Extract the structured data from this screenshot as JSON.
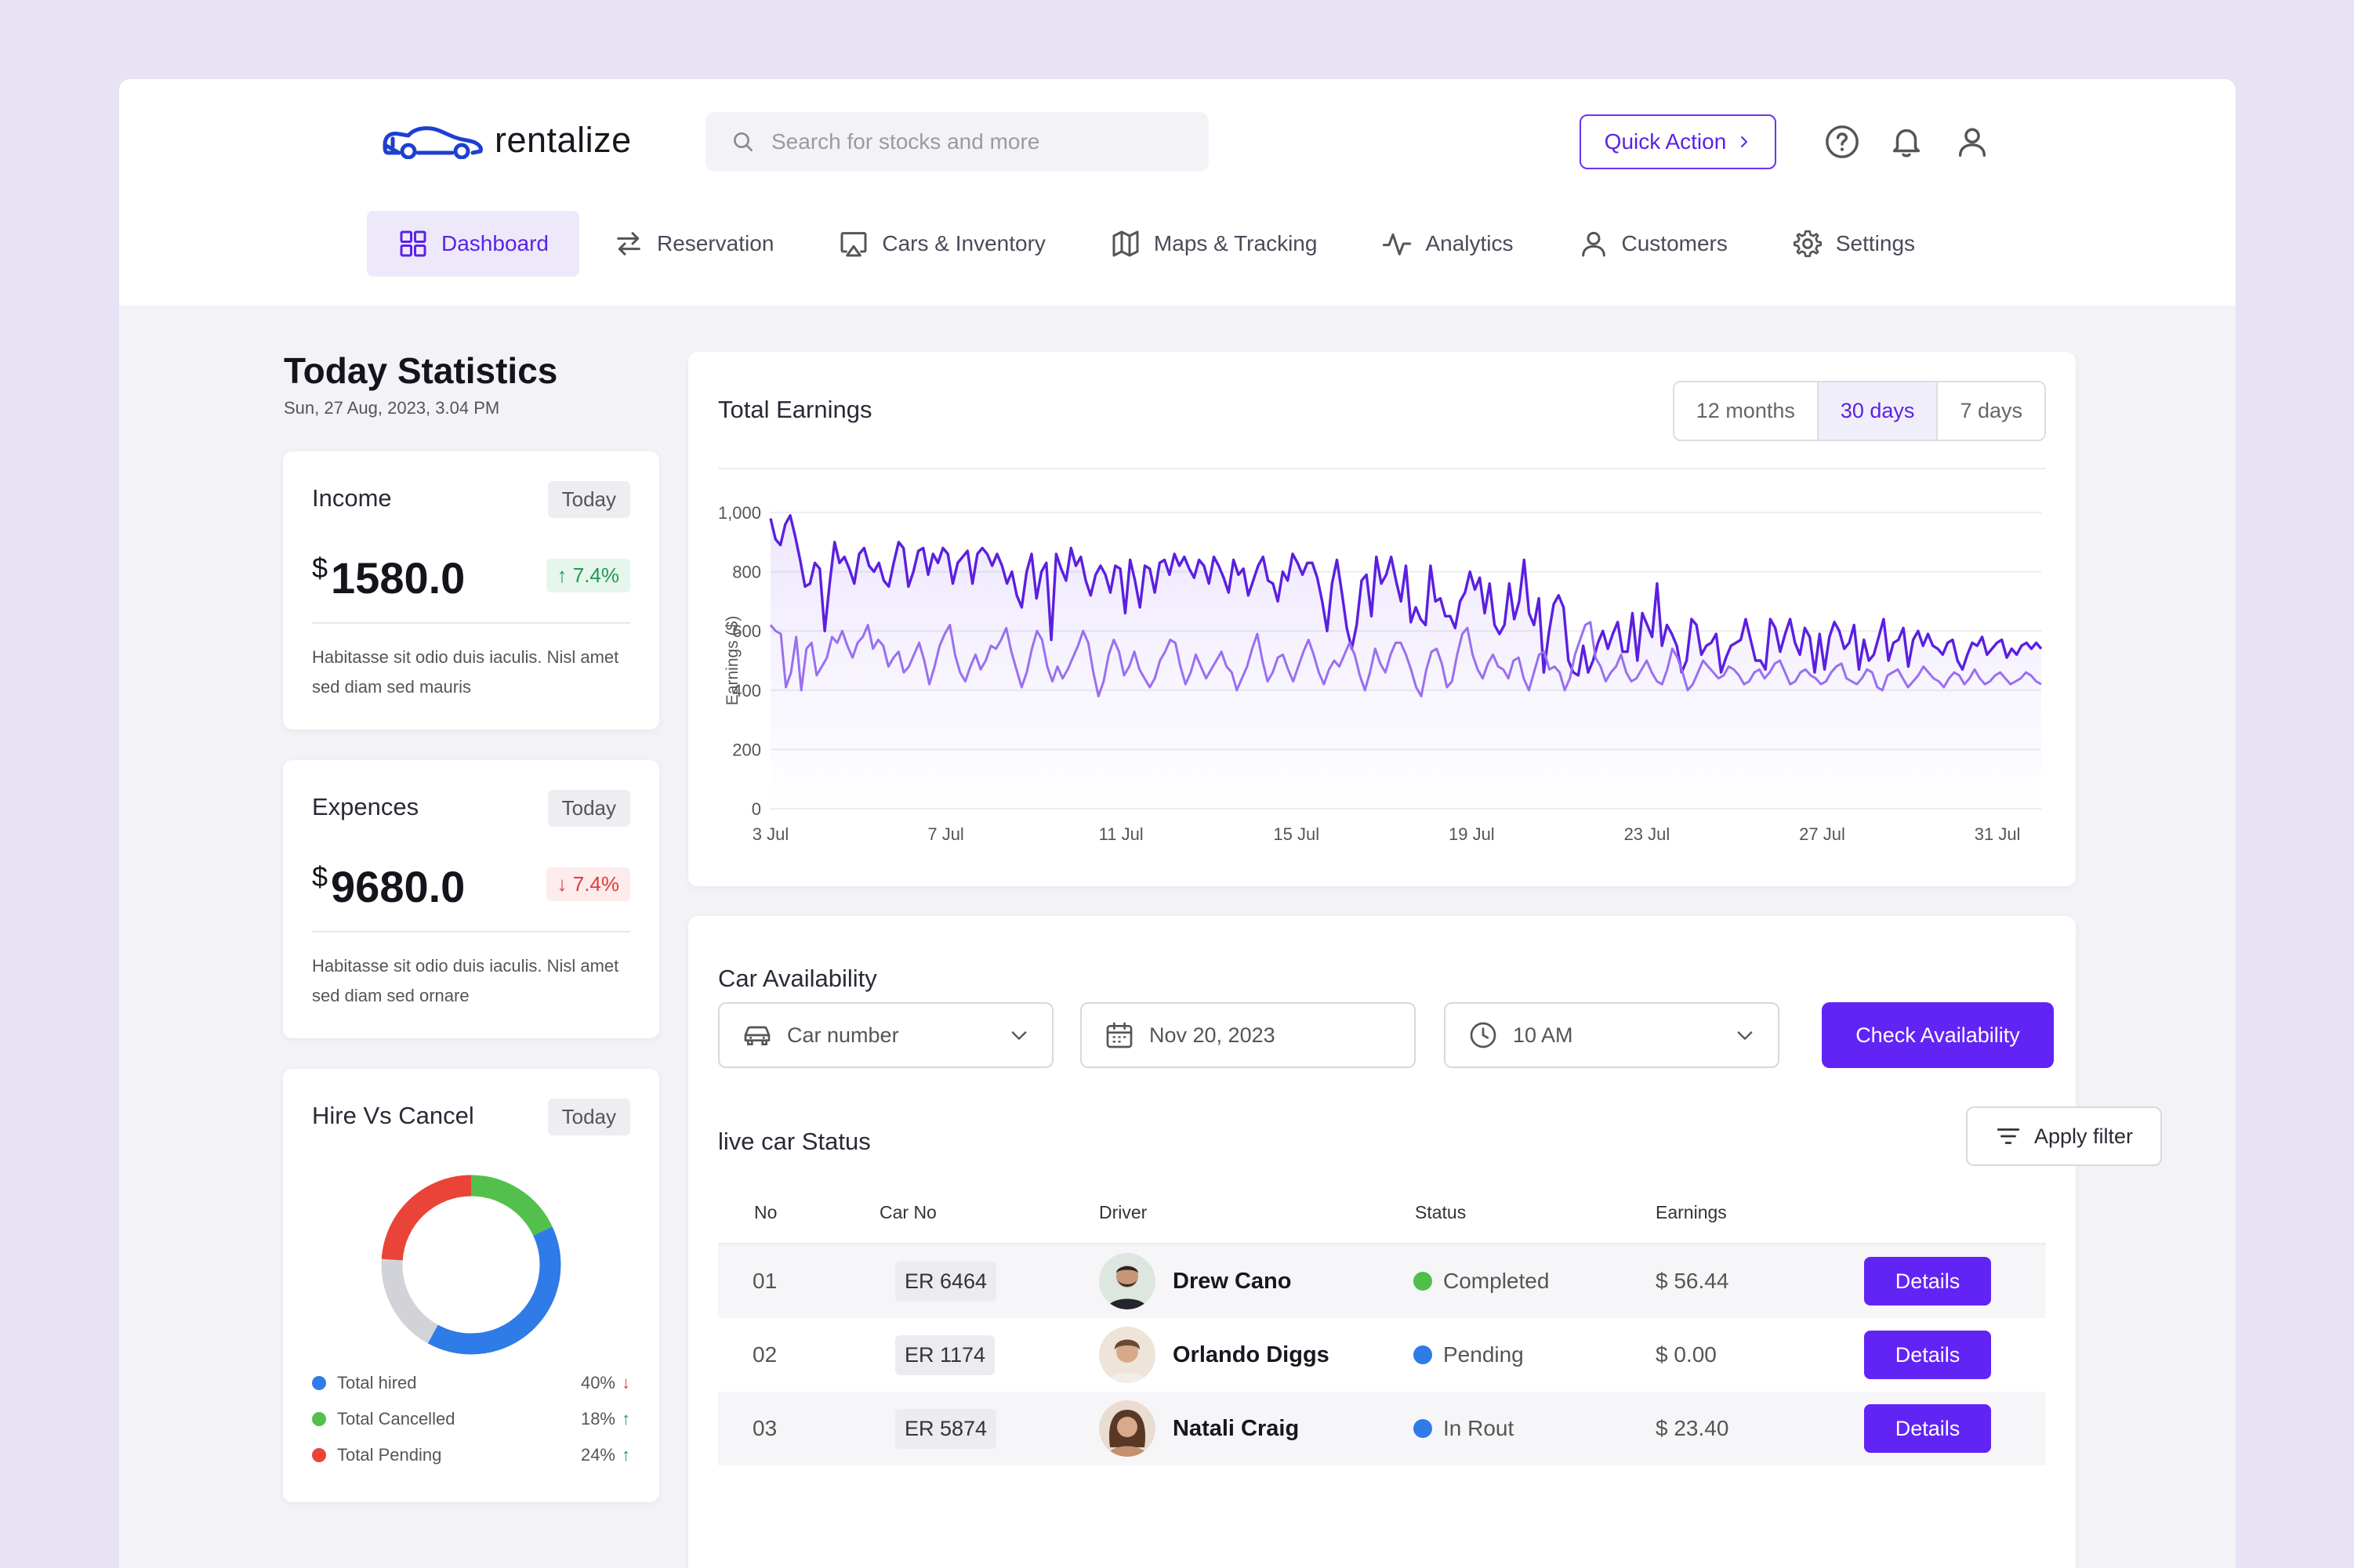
{
  "brand": {
    "name": "rentalize",
    "accent": "#6224f4"
  },
  "search": {
    "placeholder": "Search for stocks and more"
  },
  "header": {
    "quick_action": "Quick Action"
  },
  "nav": [
    {
      "label": "Dashboard",
      "icon": "grid-icon"
    },
    {
      "label": "Reservation",
      "icon": "swap-arrows-icon"
    },
    {
      "label": "Cars & Inventory",
      "icon": "cast-icon"
    },
    {
      "label": "Maps & Tracking",
      "icon": "map-icon"
    },
    {
      "label": "Analytics",
      "icon": "activity-icon"
    },
    {
      "label": "Customers",
      "icon": "user-icon"
    },
    {
      "label": "Settings",
      "icon": "gear-icon"
    }
  ],
  "today": {
    "title": "Today Statistics",
    "date": "Sun, 27 Aug, 2023, 3.04 PM"
  },
  "income": {
    "title": "Income",
    "chip": "Today",
    "currency": "$",
    "amount": "1580.0",
    "change": "7.4%",
    "desc": "Habitasse sit odio duis iaculis. Nisl amet sed diam sed mauris"
  },
  "expences": {
    "title": "Expences",
    "chip": "Today",
    "currency": "$",
    "amount": "9680.0",
    "change": "7.4%",
    "desc": "Habitasse sit odio duis iaculis. Nisl amet sed diam sed ornare"
  },
  "hire": {
    "title": "Hire Vs Cancel",
    "chip": "Today",
    "segments": [
      {
        "name": "Total hired",
        "pct": "40%",
        "color": "#2f7be8",
        "trend": "down"
      },
      {
        "name": "Total Cancelled",
        "pct": "18%",
        "color": "#52c04a",
        "trend": "up"
      },
      {
        "name": "Total Pending",
        "pct": "24%",
        "color": "#ea4337",
        "trend": "up"
      }
    ],
    "gray_color": "#d2d3d8"
  },
  "earnings": {
    "title": "Total Earnings",
    "ranges": [
      "12 months",
      "30 days",
      "7 days"
    ],
    "active_range": "30 days"
  },
  "chart_data": {
    "type": "line",
    "ylabel": "Earnings ($)",
    "ylim": [
      0,
      1000
    ],
    "yticks": [
      "0",
      "200",
      "400",
      "600",
      "800",
      "1,000"
    ],
    "xticks": [
      "3 Jul",
      "7 Jul",
      "11 Jul",
      "15 Jul",
      "19 Jul",
      "23 Jul",
      "27 Jul",
      "31 Jul"
    ],
    "x_start_day": 3,
    "x_end_day": 32,
    "grid": true,
    "series": [
      {
        "color": "#5b1fe0",
        "values": [
          980,
          910,
          890,
          960,
          990,
          920,
          840,
          750,
          760,
          830,
          810,
          600,
          760,
          900,
          830,
          850,
          810,
          760,
          860,
          880,
          820,
          800,
          830,
          770,
          750,
          830,
          900,
          880,
          750,
          800,
          870,
          880,
          790,
          860,
          830,
          880,
          860,
          760,
          830,
          850,
          870,
          760,
          860,
          880,
          860,
          820,
          860,
          820,
          760,
          800,
          720,
          680,
          800,
          860,
          710,
          800,
          830,
          570,
          860,
          810,
          770,
          880,
          820,
          850,
          770,
          720,
          790,
          820,
          790,
          730,
          820,
          810,
          660,
          840,
          770,
          680,
          820,
          810,
          730,
          830,
          840,
          790,
          860,
          820,
          850,
          810,
          780,
          840,
          820,
          760,
          850,
          820,
          780,
          730,
          840,
          790,
          810,
          720,
          770,
          820,
          850,
          770,
          760,
          700,
          800,
          770,
          860,
          830,
          790,
          830,
          830,
          780,
          700,
          600,
          760,
          840,
          730,
          610,
          540,
          620,
          770,
          790,
          650,
          850,
          760,
          790,
          850,
          770,
          700,
          820,
          630,
          680,
          640,
          620,
          820,
          700,
          710,
          650,
          650,
          610,
          700,
          730,
          800,
          740,
          780,
          660,
          760,
          620,
          590,
          620,
          760,
          640,
          700,
          840,
          660,
          620,
          710,
          460,
          590,
          690,
          720,
          680,
          500,
          460,
          450,
          550,
          460,
          500,
          560,
          600,
          540,
          590,
          630,
          530,
          530,
          660,
          500,
          660,
          620,
          580,
          760,
          550,
          620,
          590,
          550,
          460,
          500,
          640,
          620,
          520,
          550,
          560,
          590,
          460,
          510,
          550,
          560,
          570,
          640,
          570,
          500,
          500,
          470,
          640,
          610,
          530,
          590,
          640,
          560,
          520,
          610,
          580,
          460,
          590,
          470,
          580,
          630,
          600,
          540,
          560,
          620,
          470,
          570,
          500,
          520,
          580,
          640,
          500,
          560,
          570,
          610,
          480,
          570,
          600,
          550,
          590,
          550,
          540,
          520,
          560,
          570,
          500,
          470,
          520,
          560,
          550,
          580,
          520,
          540,
          560,
          570,
          510,
          540,
          520,
          550,
          560,
          540,
          560,
          540
        ],
        "name": ""
      },
      {
        "color": "#9a6ff0",
        "values": [
          620,
          600,
          590,
          410,
          460,
          580,
          400,
          540,
          560,
          450,
          480,
          510,
          580,
          560,
          600,
          550,
          510,
          560,
          580,
          620,
          540,
          570,
          550,
          480,
          510,
          530,
          460,
          480,
          520,
          560,
          500,
          420,
          480,
          550,
          590,
          620,
          520,
          460,
          430,
          480,
          520,
          470,
          500,
          550,
          540,
          570,
          610,
          530,
          470,
          410,
          460,
          540,
          600,
          570,
          480,
          430,
          480,
          440,
          470,
          510,
          550,
          600,
          560,
          460,
          380,
          430,
          520,
          570,
          530,
          450,
          480,
          530,
          470,
          440,
          410,
          440,
          500,
          530,
          570,
          560,
          480,
          420,
          460,
          520,
          480,
          440,
          470,
          500,
          530,
          480,
          460,
          400,
          440,
          480,
          540,
          590,
          500,
          430,
          460,
          510,
          520,
          470,
          430,
          480,
          530,
          570,
          520,
          460,
          420,
          470,
          500,
          480,
          520,
          560,
          520,
          450,
          400,
          460,
          540,
          490,
          460,
          520,
          560,
          560,
          520,
          470,
          410,
          380,
          470,
          530,
          540,
          490,
          410,
          430,
          520,
          590,
          610,
          520,
          470,
          440,
          490,
          520,
          480,
          470,
          440,
          500,
          510,
          440,
          400,
          460,
          520,
          530,
          470,
          480,
          460,
          400,
          440,
          520,
          570,
          620,
          630,
          510,
          480,
          430,
          460,
          480,
          520,
          460,
          430,
          440,
          470,
          500,
          460,
          430,
          420,
          470,
          540,
          510,
          460,
          400,
          420,
          460,
          500,
          480,
          460,
          440,
          450,
          480,
          470,
          450,
          420,
          430,
          460,
          470,
          440,
          460,
          490,
          500,
          460,
          420,
          430,
          460,
          470,
          450,
          440,
          420,
          430,
          460,
          480,
          490,
          440,
          430,
          420,
          440,
          470,
          460,
          410,
          400,
          450,
          460,
          470,
          440,
          410,
          430,
          450,
          480,
          460,
          440,
          430,
          410,
          440,
          460,
          450,
          420,
          440,
          470,
          440,
          420,
          430,
          450,
          460,
          440,
          420,
          430,
          440,
          460,
          450,
          430,
          420
        ],
        "name": ""
      }
    ]
  },
  "availability": {
    "title": "Car Availability",
    "car_field": "Car number",
    "date_field": "Nov 20, 2023",
    "time_field": "10 AM",
    "check_label": "Check Availability"
  },
  "live": {
    "title": "live car Status",
    "filter_label": "Apply filter",
    "headers": {
      "no": "No",
      "car": "Car No",
      "driver": "Driver",
      "status": "Status",
      "earnings": "Earnings"
    },
    "rows": [
      {
        "no": "01",
        "car": "ER 6464",
        "driver": "Drew Cano",
        "status": "Completed",
        "status_color": "#4fbf4a",
        "earnings": "$ 56.44",
        "action": "Details"
      },
      {
        "no": "02",
        "car": "ER 1174",
        "driver": "Orlando Diggs",
        "status": "Pending",
        "status_color": "#2f7be8",
        "earnings": "$ 0.00",
        "action": "Details"
      },
      {
        "no": "03",
        "car": "ER 5874",
        "driver": "Natali Craig",
        "status": "In Rout",
        "status_color": "#2f7be8",
        "earnings": "$ 23.40",
        "action": "Details"
      }
    ]
  }
}
